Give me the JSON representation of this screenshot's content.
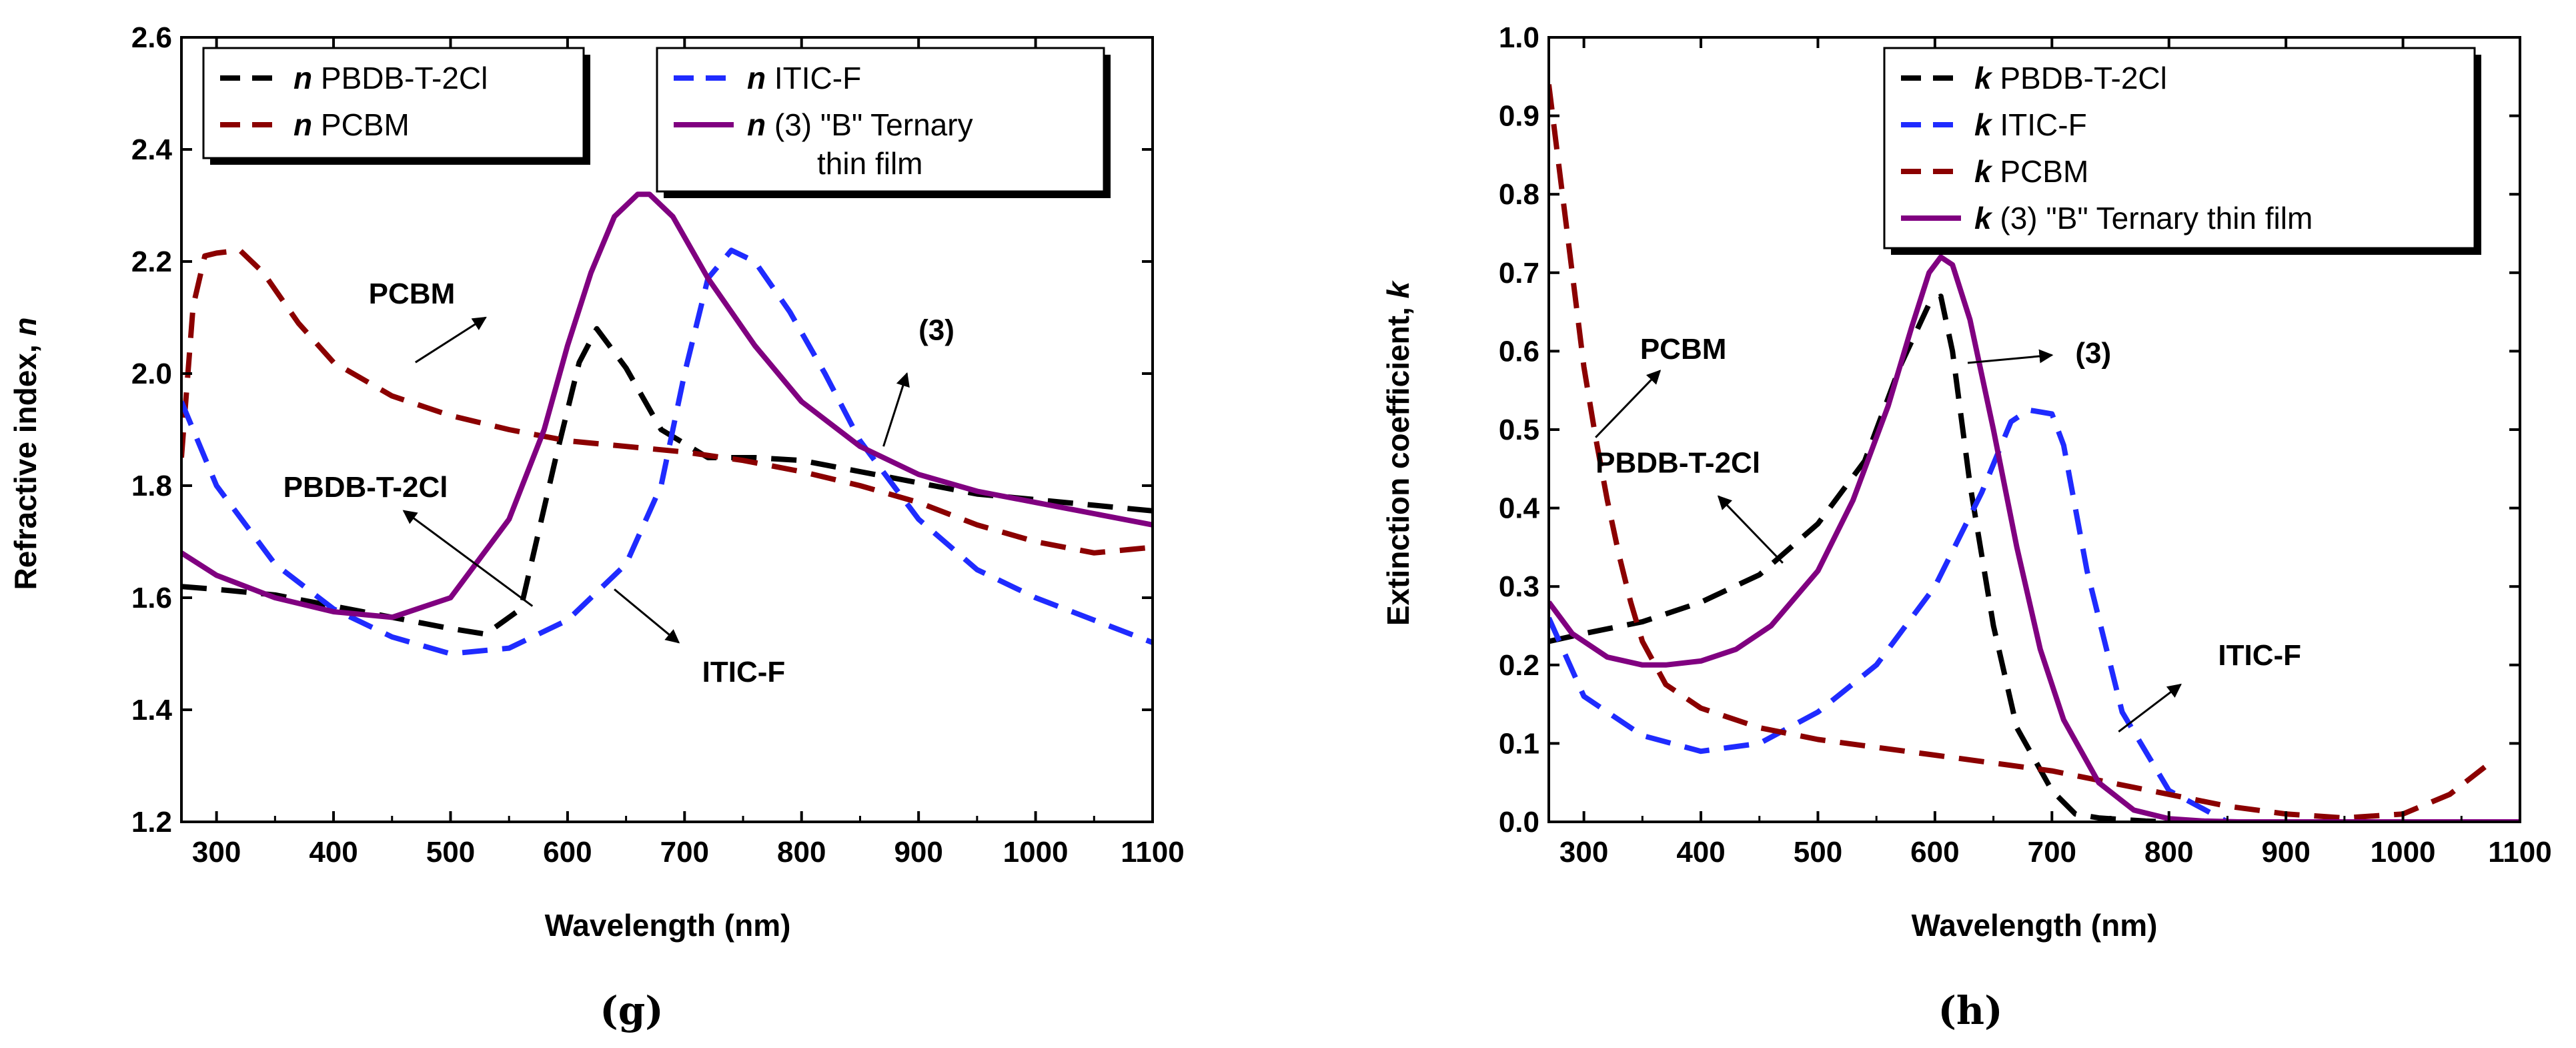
{
  "colors": {
    "pbdb": "#000000",
    "itic": "#1f2bff",
    "pcbm": "#8b0000",
    "ternary": "#800080"
  },
  "chart_data": [
    {
      "id": "g",
      "type": "line",
      "panel_label": "(g)",
      "xlabel": "Wavelength (nm)",
      "ylabel_main": "Refractive index, ",
      "ylabel_sym": "n",
      "xlim": [
        270,
        1100
      ],
      "ylim": [
        1.2,
        2.6
      ],
      "xticks": [
        300,
        400,
        500,
        600,
        700,
        800,
        900,
        1000,
        1100
      ],
      "yticks": [
        1.2,
        1.4,
        1.6,
        1.8,
        2.0,
        2.2,
        2.4,
        2.6
      ],
      "ytick_labels": [
        "1.2",
        "1.4",
        "1.6",
        "1.8",
        "2.0",
        "2.2",
        "2.4",
        "2.6"
      ],
      "legend_position": "top",
      "legend_boxes": [
        [
          {
            "sym": "n",
            "label": "PBDB-T-2Cl",
            "series": "pbdb",
            "line2": ""
          },
          {
            "sym": "n",
            "label": "PCBM",
            "series": "pcbm",
            "line2": ""
          }
        ],
        [
          {
            "sym": "n",
            "label": "ITIC-F",
            "series": "itic",
            "line2": ""
          },
          {
            "sym": "n",
            "label": "(3) \"B\" Ternary",
            "series": "ternary",
            "line2": "thin film"
          }
        ]
      ],
      "series": [
        {
          "key": "pbdb",
          "name": "n PBDB-T-2Cl",
          "dashed": true,
          "x": [
            270,
            300,
            350,
            400,
            450,
            500,
            530,
            560,
            590,
            610,
            625,
            650,
            680,
            720,
            760,
            800,
            850,
            900,
            950,
            1000,
            1050,
            1100
          ],
          "y": [
            1.62,
            1.615,
            1.605,
            1.585,
            1.565,
            1.545,
            1.535,
            1.58,
            1.85,
            2.02,
            2.08,
            2.01,
            1.9,
            1.85,
            1.85,
            1.845,
            1.825,
            1.805,
            1.785,
            1.775,
            1.765,
            1.755
          ]
        },
        {
          "key": "pcbm",
          "name": "n PCBM",
          "dashed": true,
          "x": [
            270,
            280,
            290,
            300,
            320,
            340,
            370,
            400,
            450,
            500,
            550,
            600,
            650,
            700,
            750,
            800,
            850,
            900,
            950,
            1000,
            1050,
            1100
          ],
          "y": [
            1.85,
            2.12,
            2.21,
            2.215,
            2.22,
            2.18,
            2.09,
            2.02,
            1.96,
            1.925,
            1.9,
            1.88,
            1.87,
            1.86,
            1.845,
            1.825,
            1.8,
            1.77,
            1.73,
            1.7,
            1.68,
            1.69
          ]
        },
        {
          "key": "itic",
          "name": "n ITIC-F",
          "dashed": true,
          "x": [
            270,
            300,
            350,
            400,
            450,
            500,
            550,
            600,
            650,
            680,
            700,
            720,
            740,
            760,
            790,
            820,
            850,
            900,
            950,
            1000,
            1050,
            1100
          ],
          "y": [
            1.95,
            1.8,
            1.66,
            1.58,
            1.53,
            1.5,
            1.51,
            1.56,
            1.66,
            1.8,
            2.0,
            2.17,
            2.22,
            2.2,
            2.11,
            2.0,
            1.88,
            1.74,
            1.65,
            1.6,
            1.56,
            1.52
          ]
        },
        {
          "key": "ternary",
          "name": "n (3) \"B\" Ternary thin film",
          "dashed": false,
          "x": [
            270,
            300,
            350,
            400,
            450,
            500,
            550,
            580,
            600,
            620,
            640,
            660,
            670,
            690,
            720,
            760,
            800,
            850,
            900,
            950,
            1000,
            1050,
            1100
          ],
          "y": [
            1.68,
            1.64,
            1.6,
            1.575,
            1.565,
            1.6,
            1.74,
            1.9,
            2.05,
            2.18,
            2.28,
            2.32,
            2.32,
            2.28,
            2.17,
            2.05,
            1.95,
            1.87,
            1.82,
            1.79,
            1.77,
            1.75,
            1.73
          ]
        }
      ],
      "annotations": [
        {
          "text": "PCBM",
          "tx": 430,
          "ty": 2.125,
          "ax1": 470,
          "ay1": 2.02,
          "ax2": 530,
          "ay2": 2.1
        },
        {
          "text": "(3)",
          "tx": 900,
          "ty": 2.06,
          "ax1": 870,
          "ay1": 1.87,
          "ax2": 890,
          "ay2": 2.0
        },
        {
          "text": "PBDB-T-2Cl",
          "tx": 357,
          "ty": 1.78,
          "ax1": 570,
          "ay1": 1.585,
          "ax2": 460,
          "ay2": 1.755
        },
        {
          "text": "ITIC-F",
          "tx": 715,
          "ty": 1.45,
          "ax1": 640,
          "ay1": 1.615,
          "ax2": 695,
          "ay2": 1.52
        }
      ]
    },
    {
      "id": "h",
      "type": "line",
      "panel_label": "(h)",
      "xlabel": "Wavelength (nm)",
      "ylabel_main": "Extinction coefficient, ",
      "ylabel_sym": "k",
      "xlim": [
        270,
        1100
      ],
      "ylim": [
        0,
        1.0
      ],
      "xticks": [
        300,
        400,
        500,
        600,
        700,
        800,
        900,
        1000,
        1100
      ],
      "yticks": [
        0,
        0.1,
        0.2,
        0.3,
        0.4,
        0.5,
        0.6,
        0.7,
        0.8,
        0.9,
        1.0
      ],
      "ytick_labels": [
        "0.0",
        "0.1",
        "0.2",
        "0.3",
        "0.4",
        "0.5",
        "0.6",
        "0.7",
        "0.8",
        "0.9",
        "1.0"
      ],
      "legend_position": "top-right",
      "legend_boxes": [
        [
          {
            "sym": "k",
            "label": "PBDB-T-2Cl",
            "series": "pbdb",
            "line2": ""
          },
          {
            "sym": "k",
            "label": "ITIC-F",
            "series": "itic",
            "line2": ""
          },
          {
            "sym": "k",
            "label": "PCBM",
            "series": "pcbm",
            "line2": ""
          },
          {
            "sym": "k",
            "label": "(3) \"B\" Ternary thin film",
            "series": "ternary",
            "line2": ""
          }
        ]
      ],
      "series": [
        {
          "key": "pbdb",
          "name": "k PBDB-T-2Cl",
          "dashed": true,
          "x": [
            270,
            300,
            350,
            400,
            450,
            500,
            540,
            570,
            595,
            605,
            615,
            630,
            650,
            670,
            700,
            720,
            740,
            760,
            780,
            800
          ],
          "y": [
            0.23,
            0.24,
            0.255,
            0.28,
            0.315,
            0.38,
            0.46,
            0.58,
            0.66,
            0.67,
            0.6,
            0.43,
            0.25,
            0.12,
            0.04,
            0.01,
            0.005,
            0.003,
            0.001,
            0.0
          ]
        },
        {
          "key": "itic",
          "name": "k ITIC-F",
          "dashed": true,
          "x": [
            270,
            300,
            350,
            400,
            450,
            500,
            550,
            600,
            640,
            665,
            680,
            700,
            710,
            730,
            760,
            800,
            850,
            900,
            1000,
            1100
          ],
          "y": [
            0.26,
            0.16,
            0.11,
            0.09,
            0.1,
            0.14,
            0.2,
            0.3,
            0.42,
            0.51,
            0.525,
            0.52,
            0.48,
            0.32,
            0.14,
            0.04,
            0.0,
            0.0,
            0.0,
            0.0
          ]
        },
        {
          "key": "pcbm",
          "name": "k PCBM",
          "dashed": true,
          "x": [
            270,
            280,
            290,
            300,
            310,
            320,
            330,
            340,
            350,
            370,
            400,
            450,
            500,
            550,
            600,
            650,
            700,
            750,
            800,
            850,
            900,
            950,
            1000,
            1040,
            1070
          ],
          "y": [
            0.94,
            0.82,
            0.7,
            0.58,
            0.49,
            0.41,
            0.34,
            0.28,
            0.23,
            0.175,
            0.145,
            0.12,
            0.105,
            0.095,
            0.085,
            0.075,
            0.065,
            0.05,
            0.035,
            0.02,
            0.01,
            0.005,
            0.01,
            0.035,
            0.07
          ]
        },
        {
          "key": "ternary",
          "name": "k (3) \"B\" Ternary thin film",
          "dashed": false,
          "x": [
            270,
            290,
            320,
            350,
            370,
            400,
            430,
            460,
            500,
            530,
            560,
            580,
            595,
            605,
            615,
            630,
            650,
            670,
            690,
            710,
            740,
            770,
            800,
            830,
            860,
            900,
            1000,
            1100
          ],
          "y": [
            0.28,
            0.24,
            0.21,
            0.2,
            0.2,
            0.205,
            0.22,
            0.25,
            0.32,
            0.41,
            0.53,
            0.63,
            0.7,
            0.72,
            0.71,
            0.64,
            0.5,
            0.35,
            0.22,
            0.13,
            0.05,
            0.015,
            0.004,
            0.001,
            0.0,
            0.0,
            0.0,
            0.0
          ]
        }
      ],
      "annotations": [
        {
          "text": "PCBM",
          "tx": 348,
          "ty": 0.59,
          "ax1": 310,
          "ay1": 0.49,
          "ax2": 365,
          "ay2": 0.575
        },
        {
          "text": "(3)",
          "tx": 720,
          "ty": 0.585,
          "ax1": 628,
          "ay1": 0.585,
          "ax2": 700,
          "ay2": 0.595
        },
        {
          "text": "PBDB-T-2Cl",
          "tx": 310,
          "ty": 0.445,
          "ax1": 470,
          "ay1": 0.33,
          "ax2": 415,
          "ay2": 0.415
        },
        {
          "text": "ITIC-F",
          "tx": 842,
          "ty": 0.2,
          "ax1": 757,
          "ay1": 0.115,
          "ax2": 810,
          "ay2": 0.175
        }
      ]
    }
  ]
}
